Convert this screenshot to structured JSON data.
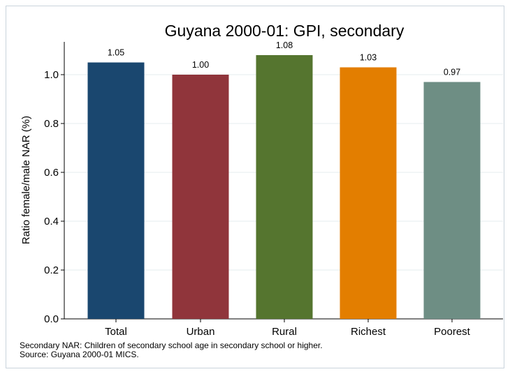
{
  "chart_data": {
    "type": "bar",
    "title": "Guyana 2000-01: GPI, secondary",
    "xlabel": "",
    "ylabel": "Ratio female/male NAR (%)",
    "categories": [
      "Total",
      "Urban",
      "Rural",
      "Richest",
      "Poorest"
    ],
    "values": [
      1.05,
      1.0,
      1.08,
      1.03,
      0.97
    ],
    "value_labels": [
      "1.05",
      "1.00",
      "1.08",
      "1.03",
      "0.97"
    ],
    "colors": [
      "#1a476f",
      "#90353b",
      "#55752f",
      "#e37e00",
      "#6e8e84"
    ],
    "ylim": [
      0,
      1.1
    ],
    "yticks": [
      0,
      0.2,
      0.4,
      0.6,
      0.8,
      1.0
    ],
    "ytick_labels": [
      "0.0",
      "0.2",
      "0.4",
      "0.6",
      "0.8",
      "1.0"
    ],
    "grid": true,
    "grid_color": "#e6ecef",
    "legend": "none"
  },
  "notes": {
    "line1": "Secondary NAR: Children of secondary school age in secondary school or higher.",
    "line2": "Source: Guyana 2000-01 MICS."
  }
}
